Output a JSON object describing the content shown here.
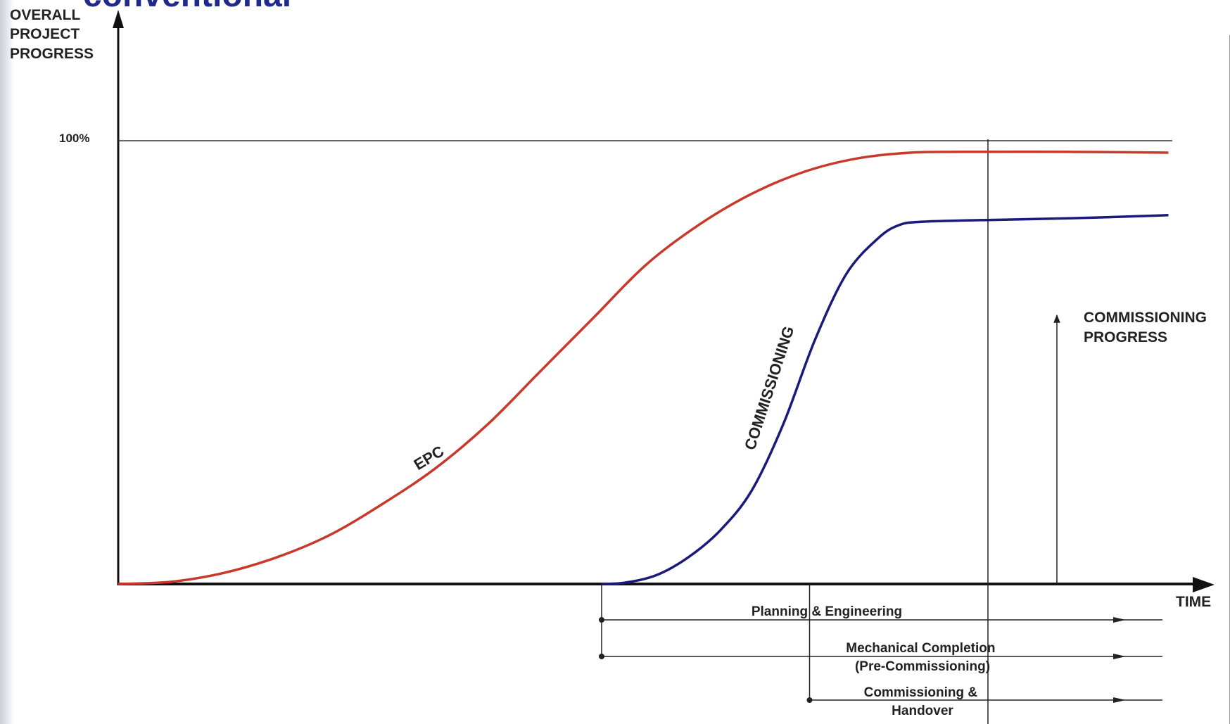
{
  "heading": "conventional",
  "chart_data": {
    "type": "line",
    "ylabel": [
      "OVERALL",
      "PROJECT",
      "PROGRESS"
    ],
    "xlabel": "TIME",
    "y_tick_label": "100%",
    "ylim": [
      0,
      100
    ],
    "xlim": [
      0,
      100
    ],
    "grid": false,
    "legend": "none",
    "series": [
      {
        "name": "EPC",
        "color": "#c8392b",
        "points": [
          [
            0,
            0
          ],
          [
            5,
            0.5
          ],
          [
            10,
            2.5
          ],
          [
            15,
            6
          ],
          [
            20,
            11
          ],
          [
            25,
            18
          ],
          [
            30,
            26
          ],
          [
            35,
            36
          ],
          [
            40,
            48
          ],
          [
            45,
            60
          ],
          [
            50,
            72
          ],
          [
            55,
            81
          ],
          [
            60,
            88
          ],
          [
            65,
            93
          ],
          [
            70,
            96
          ],
          [
            75,
            97.3
          ],
          [
            80,
            97.5
          ],
          [
            90,
            97.5
          ],
          [
            99.5,
            97.3
          ]
        ]
      },
      {
        "name": "COMMISSIONING",
        "color": "#1a1a7a",
        "points": [
          [
            45.8,
            0
          ],
          [
            48,
            0.3
          ],
          [
            51,
            2
          ],
          [
            54,
            6
          ],
          [
            57,
            12
          ],
          [
            60,
            21
          ],
          [
            63,
            36
          ],
          [
            66,
            55
          ],
          [
            69,
            70
          ],
          [
            72,
            78
          ],
          [
            74,
            81
          ],
          [
            76,
            81.7
          ],
          [
            80,
            82
          ],
          [
            90,
            82.5
          ],
          [
            99.5,
            83.2
          ]
        ]
      }
    ],
    "markers": [
      {
        "x": 82.4,
        "label": ""
      }
    ],
    "annotations": {
      "commissioning_progress": [
        "COMMISSIONING",
        "PROGRESS"
      ]
    },
    "phases": [
      {
        "label": [
          "Planning & Engineering"
        ],
        "start": 45.8
      },
      {
        "label": [
          "Mechanical Completion",
          "(Pre-Commissioning)"
        ],
        "start": 45.8
      },
      {
        "label": [
          "Commissioning &",
          "Handover"
        ],
        "start": 65.5
      }
    ]
  }
}
